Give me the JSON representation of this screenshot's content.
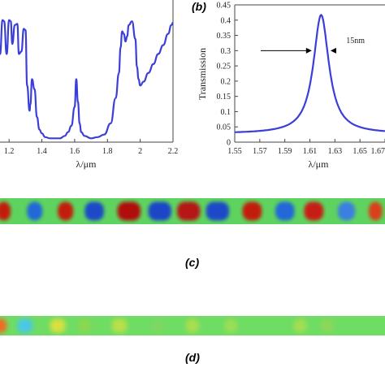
{
  "chart_data": [
    {
      "type": "line",
      "panel": "",
      "xlabel": "λ/μm",
      "ylabel": "",
      "xlim": [
        1.1,
        2.2
      ],
      "ylim": [
        0,
        1
      ],
      "x_ticks": [
        "1.2",
        "1.4",
        "1.6",
        "1.8",
        "2",
        "2.2"
      ],
      "x_tick_values": [
        1.2,
        1.4,
        1.6,
        1.8,
        2.0,
        2.2
      ],
      "series": [
        {
          "color": "#3b3fd8",
          "x": [
            1.1,
            1.115,
            1.13,
            1.145,
            1.16,
            1.17,
            1.185,
            1.2,
            1.21,
            1.22,
            1.235,
            1.25,
            1.26,
            1.275,
            1.29,
            1.3,
            1.31,
            1.325,
            1.33,
            1.34,
            1.355,
            1.37,
            1.385,
            1.4,
            1.42,
            1.45,
            1.48,
            1.51,
            1.54,
            1.56,
            1.58,
            1.6,
            1.61,
            1.62,
            1.63,
            1.64,
            1.66,
            1.7,
            1.74,
            1.78,
            1.82,
            1.85,
            1.87,
            1.88,
            1.89,
            1.9,
            1.91,
            1.92,
            1.93,
            1.95,
            1.97,
            1.98,
            1.99,
            2.0,
            2.02,
            2.05,
            2.08,
            2.11,
            2.14,
            2.17,
            2.19,
            2.2
          ],
          "y": [
            0.78,
            0.96,
            0.94,
            0.7,
            0.97,
            0.96,
            0.7,
            0.97,
            0.96,
            0.78,
            0.93,
            0.94,
            0.7,
            0.72,
            0.9,
            0.89,
            0.45,
            0.25,
            0.3,
            0.5,
            0.42,
            0.2,
            0.1,
            0.07,
            0.04,
            0.03,
            0.03,
            0.03,
            0.05,
            0.08,
            0.13,
            0.28,
            0.5,
            0.32,
            0.15,
            0.08,
            0.05,
            0.03,
            0.04,
            0.06,
            0.15,
            0.35,
            0.55,
            0.75,
            0.88,
            0.86,
            0.8,
            0.84,
            0.93,
            0.96,
            0.82,
            0.6,
            0.5,
            0.45,
            0.48,
            0.55,
            0.62,
            0.7,
            0.77,
            0.86,
            0.93,
            0.95
          ]
        }
      ]
    },
    {
      "type": "line",
      "panel": "(b)",
      "xlabel": "λ/μm",
      "ylabel": "Transmission",
      "xlim": [
        1.55,
        1.67
      ],
      "ylim": [
        0,
        0.45
      ],
      "x_ticks": [
        "1.55",
        "1.57",
        "1.59",
        "1.61",
        "1.63",
        "1.65",
        "1.67"
      ],
      "x_tick_values": [
        1.55,
        1.57,
        1.59,
        1.61,
        1.63,
        1.65,
        1.67
      ],
      "y_ticks": [
        "0",
        "0.05",
        "0.1",
        "0.15",
        "0.2",
        "0.25",
        "0.3",
        "0.35",
        "0.4",
        "0.45"
      ],
      "y_tick_values": [
        0,
        0.05,
        0.1,
        0.15,
        0.2,
        0.25,
        0.3,
        0.35,
        0.4,
        0.45
      ],
      "annotations": [
        {
          "text": "15nm",
          "x": 1.639,
          "y": 0.325
        }
      ],
      "fwhm_arrows": {
        "y": 0.3,
        "x_left": 1.6115,
        "x_right": 1.6265
      },
      "series": [
        {
          "color": "#3b3fd8",
          "peak_x": 1.619,
          "peak_y": 0.417,
          "half_width": 0.0075,
          "x": [
            1.55,
            1.56,
            1.57,
            1.58,
            1.59,
            1.6,
            1.605,
            1.61,
            1.613,
            1.616,
            1.619,
            1.622,
            1.625,
            1.628,
            1.633,
            1.64,
            1.65,
            1.66,
            1.67
          ],
          "y": [
            0.035,
            0.043,
            0.053,
            0.069,
            0.098,
            0.155,
            0.211,
            0.289,
            0.335,
            0.388,
            0.417,
            0.388,
            0.335,
            0.289,
            0.211,
            0.126,
            0.069,
            0.045,
            0.035
          ]
        }
      ]
    }
  ],
  "panels": {
    "b": {
      "label": "(b)"
    },
    "c": {
      "label": "(c)"
    },
    "d": {
      "label": "(d)"
    }
  },
  "field_maps": {
    "c": {
      "background": "#5fd35f",
      "blobs": [
        {
          "color": "#c21a10",
          "center": 0.01,
          "span": 0.035
        },
        {
          "color": "#2468d8",
          "center": 0.09,
          "span": 0.04
        },
        {
          "color": "#c21a10",
          "center": 0.17,
          "span": 0.04
        },
        {
          "color": "#1e48c8",
          "center": 0.245,
          "span": 0.05
        },
        {
          "color": "#b01010",
          "center": 0.335,
          "span": 0.06
        },
        {
          "color": "#1e44c8",
          "center": 0.415,
          "span": 0.06
        },
        {
          "color": "#b51212",
          "center": 0.49,
          "span": 0.06
        },
        {
          "color": "#1e48c8",
          "center": 0.565,
          "span": 0.06
        },
        {
          "color": "#c21a10",
          "center": 0.655,
          "span": 0.05
        },
        {
          "color": "#2468d8",
          "center": 0.74,
          "span": 0.05
        },
        {
          "color": "#c81c12",
          "center": 0.815,
          "span": 0.05
        },
        {
          "color": "#3a80e0",
          "center": 0.9,
          "span": 0.045
        },
        {
          "color": "#d8401a",
          "center": 0.975,
          "span": 0.035
        }
      ]
    },
    "d": {
      "background": "#6fdc64",
      "blobs": [
        {
          "color": "#f06a20",
          "center": 0.0,
          "span": 0.035
        },
        {
          "color": "#4ac8e8",
          "center": 0.065,
          "span": 0.04
        },
        {
          "color": "#d8e040",
          "center": 0.15,
          "span": 0.04
        },
        {
          "color": "#8ad850",
          "center": 0.22,
          "span": 0.035
        },
        {
          "color": "#b8e048",
          "center": 0.31,
          "span": 0.04
        },
        {
          "color": "#7ed860",
          "center": 0.41,
          "span": 0.035
        },
        {
          "color": "#a8de50",
          "center": 0.5,
          "span": 0.035
        },
        {
          "color": "#9ade54",
          "center": 0.6,
          "span": 0.035
        },
        {
          "color": "#a0de52",
          "center": 0.78,
          "span": 0.035
        },
        {
          "color": "#8ad858",
          "center": 0.85,
          "span": 0.035
        }
      ]
    }
  }
}
